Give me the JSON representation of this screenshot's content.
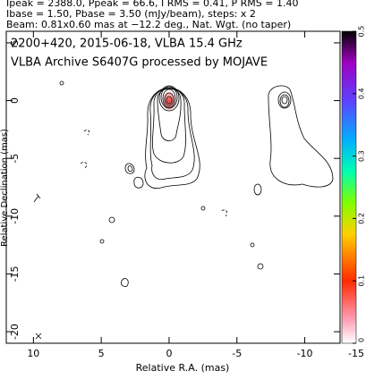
{
  "header": {
    "lines": [
      "Ipeak = 2388.0, Ppeak = 66.6, I RMS = 0.41, P RMS = 1.40",
      "Ibase = 1.50, Pbase = 3.50 (mJy/beam), steps: x 2",
      "Beam: 0.81x0.60 mas at −12.2 deg., Nat. Wgt. (no taper)"
    ]
  },
  "chart_data": {
    "type": "contour",
    "title": "2200+420, 2015-06-18, VLBA 15.4 GHz",
    "subtitle": "VLBA Archive S6407G processed by MOJAVE",
    "x_label": "Relative R.A. (mas)",
    "y_label": "Relative Declination (mas)",
    "xlim": [
      12,
      -12.6
    ],
    "xticks": [
      10,
      5,
      0,
      -5,
      -10,
      -15
    ],
    "ylim": [
      -21,
      6
    ],
    "yticks": [
      5,
      0,
      -5,
      -10,
      -15,
      -20
    ],
    "colorbar": {
      "lim": [
        0,
        0.5
      ],
      "ticks": [
        0,
        0.1,
        0.2,
        0.3,
        0.4,
        0.5
      ]
    }
  }
}
